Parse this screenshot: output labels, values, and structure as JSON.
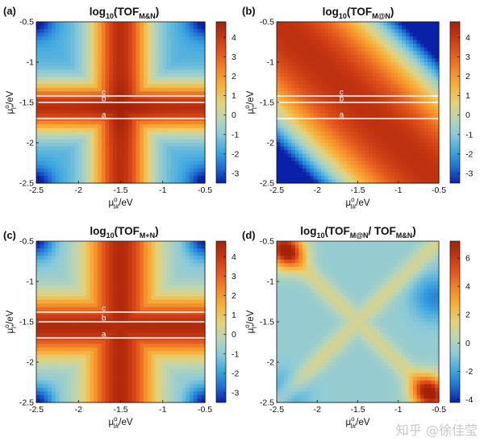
{
  "figure": {
    "watermark": "知乎 @徐佳莹",
    "colors": {
      "background": "#ffffff",
      "line_stroke": "#ffffff",
      "axis_color": "#111111"
    },
    "colormap": [
      "#0a20a8",
      "#1f70d2",
      "#3fa8e0",
      "#8ccad8",
      "#bcd5b4",
      "#e4d27a",
      "#f7b13a",
      "#f48928",
      "#e55a1f",
      "#c83812",
      "#a22208"
    ],
    "icons": {
      "colorbar": "gradient-bar"
    }
  },
  "chart_data": [
    {
      "panel_label": "(a)",
      "type": "heatmap",
      "title_main": "log",
      "title_sub": "10",
      "title_paren": "(TOF",
      "title_subscript": "M&N",
      "title_close": ")",
      "surface": "cross_low_corners",
      "x_range": [
        -2.5,
        -0.5
      ],
      "y_range": [
        -2.5,
        -0.5
      ],
      "x_ticks": [
        "-2.5",
        "-2",
        "-1.5",
        "-1",
        "-0.5"
      ],
      "y_ticks": [
        "-0.5",
        "-1",
        "-1.5",
        "-2",
        "-2.5"
      ],
      "xlabel_mu": "μ",
      "xlabel_sup": "o",
      "xlabel_sub": "I#",
      "xlabel_unit": "/eV",
      "ylabel_mu": "μ",
      "ylabel_sup": "o",
      "ylabel_sub": "I*",
      "ylabel_unit": "/eV",
      "colorbar_range": [
        -3.5,
        4.8
      ],
      "colorbar_ticks": [
        "4",
        "3",
        "2",
        "1",
        "0",
        "-1",
        "-2",
        "-3"
      ],
      "lines": [
        {
          "label": "c",
          "y": -1.42
        },
        {
          "label": "b",
          "y": -1.5
        },
        {
          "label": "a",
          "y": -1.7
        }
      ]
    },
    {
      "panel_label": "(b)",
      "type": "heatmap",
      "title_main": "log",
      "title_sub": "10",
      "title_paren": "(TOF",
      "title_subscript": "M@N",
      "title_close": ")",
      "surface": "diagonal_band",
      "x_range": [
        -2.5,
        -0.5
      ],
      "y_range": [
        -2.5,
        -0.5
      ],
      "x_ticks": [
        "-2.5",
        "-2",
        "-1.5",
        "-1",
        "-0.5"
      ],
      "y_ticks": [
        "-0.5",
        "-1",
        "-1.5",
        "-2",
        "-2.5"
      ],
      "xlabel_mu": "μ",
      "xlabel_sup": "o",
      "xlabel_sub": "I#",
      "xlabel_unit": "/eV",
      "ylabel_mu": "μ",
      "ylabel_sup": "o",
      "ylabel_sub": "I*",
      "ylabel_unit": "/eV",
      "colorbar_range": [
        -3.5,
        4.8
      ],
      "colorbar_ticks": [
        "4",
        "3",
        "2",
        "1",
        "0",
        "-1",
        "-2",
        "-3"
      ],
      "lines": [
        {
          "label": "c",
          "y": -1.42
        },
        {
          "label": "b",
          "y": -1.5
        },
        {
          "label": "a",
          "y": -1.7
        }
      ]
    },
    {
      "panel_label": "(c)",
      "type": "heatmap",
      "title_main": "log",
      "title_sub": "10",
      "title_paren": "(TOF",
      "title_subscript": "M+N",
      "title_close": ")",
      "surface": "cross_high",
      "x_range": [
        -2.5,
        -0.5
      ],
      "y_range": [
        -2.5,
        -0.5
      ],
      "x_ticks": [
        "-2.5",
        "-2",
        "-1.5",
        "-1",
        "-0.5"
      ],
      "y_ticks": [
        "-0.5",
        "-1",
        "-1.5",
        "-2",
        "-2.5"
      ],
      "xlabel_mu": "μ",
      "xlabel_sup": "o",
      "xlabel_sub": "I#",
      "xlabel_unit": "/eV",
      "ylabel_mu": "μ",
      "ylabel_sup": "o",
      "ylabel_sub": "I*",
      "ylabel_unit": "/eV",
      "colorbar_range": [
        -3.5,
        4.8
      ],
      "colorbar_ticks": [
        "4",
        "3",
        "2",
        "1",
        "0",
        "-1",
        "-2",
        "-3"
      ],
      "lines": [
        {
          "label": "c",
          "y": -1.38
        },
        {
          "label": "b",
          "y": -1.5
        },
        {
          "label": "a",
          "y": -1.7
        }
      ]
    },
    {
      "panel_label": "(d)",
      "type": "heatmap",
      "title_main": "log",
      "title_sub": "10",
      "title_paren": "(TOF",
      "title_subscript": "M@N",
      "title_slash": "/ TOF",
      "title_subscript2": "M&N",
      "title_close": ")",
      "surface": "ratio",
      "x_range": [
        -2.5,
        -0.5
      ],
      "y_range": [
        -2.5,
        -0.5
      ],
      "x_ticks": [
        "-2.5",
        "-2",
        "-1.5",
        "-1",
        "-0.5"
      ],
      "y_ticks": [
        "-0.5",
        "-1",
        "-1.5",
        "-2",
        "-2.5"
      ],
      "xlabel_mu": "μ",
      "xlabel_sup": "o",
      "xlabel_sub": "I#",
      "xlabel_unit": "/eV",
      "ylabel_mu": "μ",
      "ylabel_sup": "o",
      "ylabel_sub": "I*",
      "ylabel_unit": "/eV",
      "colorbar_range": [
        -4.2,
        7.2
      ],
      "colorbar_ticks": [
        "6",
        "4",
        "2",
        "0",
        "-2",
        "-4"
      ],
      "lines": []
    }
  ]
}
